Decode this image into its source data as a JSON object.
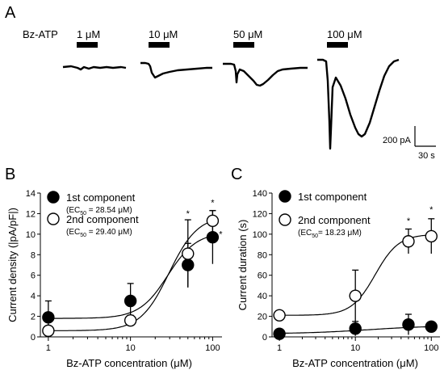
{
  "panel_a": {
    "letter": "A",
    "agonist_label": "Bz-ATP",
    "doses": [
      "1 μM",
      "10 μM",
      "50 μM",
      "100 μM"
    ],
    "scale_bar": {
      "current": "200 pA",
      "time": "30 s"
    }
  },
  "chart_data": [
    {
      "panel": "B",
      "type": "scatter",
      "xlabel": "Bz-ATP concentration (μM)",
      "ylabel": "Current density (|pA/pF|)",
      "xscale": "log",
      "xlim": [
        0.8,
        130
      ],
      "ylim": [
        0,
        14
      ],
      "x_ticks": [
        "1",
        "10",
        "100"
      ],
      "y_ticks": [
        "0",
        "2",
        "4",
        "6",
        "8",
        "10",
        "12",
        "14"
      ],
      "legend": [
        {
          "label": "1st component",
          "sublabel_prefix": "(EC",
          "sublabel_sub": "50",
          "sublabel_suffix": " = 28.54 μM)",
          "marker": "filled"
        },
        {
          "label": "2nd component",
          "sublabel_prefix": "(EC",
          "sublabel_sub": "50",
          "sublabel_suffix": " = 29.40 μM)",
          "marker": "open"
        }
      ],
      "series": [
        {
          "name": "1st component",
          "marker": "filled",
          "x": [
            1,
            10,
            50,
            100
          ],
          "y": [
            1.9,
            3.5,
            7.0,
            9.7
          ],
          "err": [
            1.6,
            1.7,
            2.1,
            2.6
          ]
        },
        {
          "name": "2nd component",
          "marker": "open",
          "x": [
            1,
            10,
            50,
            100
          ],
          "y": [
            0.6,
            1.6,
            8.1,
            11.3
          ],
          "err": [
            0.4,
            0.5,
            3.3,
            1.0
          ]
        }
      ],
      "fits": [
        {
          "series": "1st component",
          "bottom": 1.8,
          "top": 10.2,
          "ec50": 28.54,
          "hill": 2.5
        },
        {
          "series": "2nd component",
          "bottom": 0.6,
          "top": 11.8,
          "ec50": 29.4,
          "hill": 2.5
        }
      ],
      "annotations": [
        {
          "text": "*",
          "x": 50,
          "y": 11.7
        },
        {
          "text": "*",
          "x": 100,
          "y": 12.8
        },
        {
          "text": "*",
          "x": 100,
          "y": 9.7,
          "dx": 1
        }
      ]
    },
    {
      "panel": "C",
      "type": "scatter",
      "xlabel": "Bz-ATP concentration (μM)",
      "ylabel": "Current duration (s)",
      "xscale": "log",
      "xlim": [
        0.8,
        130
      ],
      "ylim": [
        0,
        140
      ],
      "x_ticks": [
        "1",
        "10",
        "100"
      ],
      "y_ticks": [
        "0",
        "20",
        "40",
        "60",
        "80",
        "100",
        "120",
        "140"
      ],
      "legend": [
        {
          "label": "1st component",
          "marker": "filled"
        },
        {
          "label": "2nd component",
          "sublabel_prefix": "(EC",
          "sublabel_sub": "50",
          "sublabel_suffix": "= 18.23 μM)",
          "marker": "open"
        }
      ],
      "series": [
        {
          "name": "1st component",
          "marker": "filled",
          "x": [
            1,
            10,
            50,
            100
          ],
          "y": [
            3,
            8,
            12,
            10
          ],
          "err": [
            2,
            7,
            10,
            3
          ]
        },
        {
          "name": "2nd component",
          "marker": "open",
          "x": [
            1,
            10,
            50,
            100
          ],
          "y": [
            21,
            40,
            93,
            98
          ],
          "err": [
            3,
            25,
            12,
            17
          ]
        }
      ],
      "fits": [
        {
          "series": "1st component",
          "bottom": 3,
          "top": 11,
          "ec50": 15,
          "hill": 1
        },
        {
          "series": "2nd component",
          "bottom": 21,
          "top": 100,
          "ec50": 18.23,
          "hill": 2.8
        }
      ],
      "annotations": [
        {
          "text": "*",
          "x": 50,
          "y": 110
        },
        {
          "text": "*",
          "x": 100,
          "y": 121
        }
      ]
    }
  ]
}
